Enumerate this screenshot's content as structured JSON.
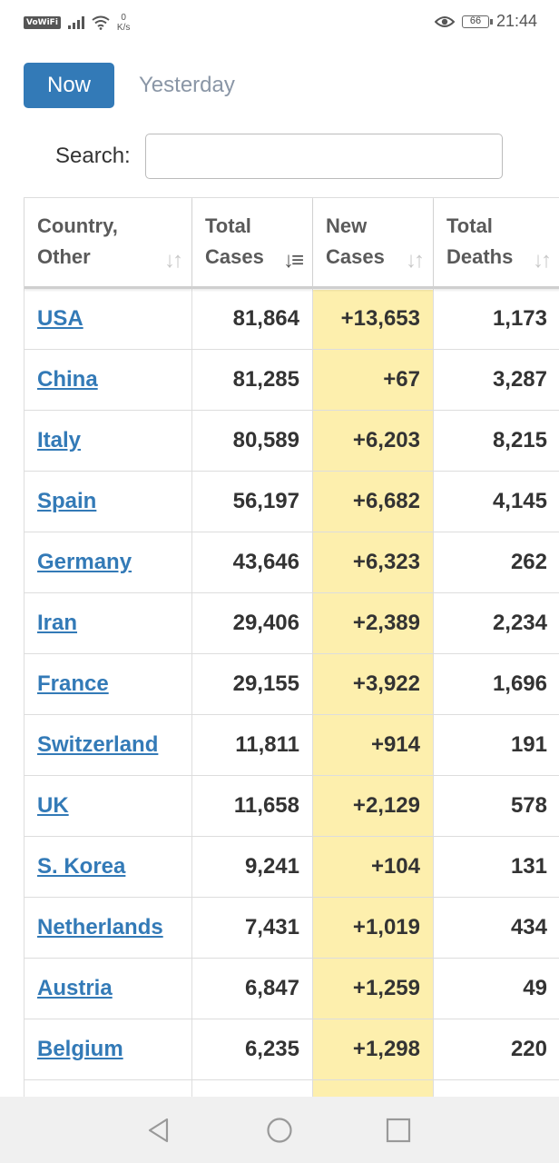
{
  "status_bar": {
    "vowifi": "VoWiFi",
    "net_speed_value": "0",
    "net_speed_unit": "K/s",
    "battery": "66",
    "time": "21:44"
  },
  "tabs": {
    "now": "Now",
    "yesterday": "Yesterday"
  },
  "search": {
    "label": "Search:",
    "value": "",
    "placeholder": ""
  },
  "table": {
    "headers": [
      {
        "line1": "Country,",
        "line2": "Other"
      },
      {
        "line1": "Total",
        "line2": "Cases"
      },
      {
        "line1": "New",
        "line2": "Cases"
      },
      {
        "line1": "Total",
        "line2": "Deaths"
      }
    ],
    "rows": [
      {
        "country": "USA",
        "total_cases": "81,864",
        "new_cases": "+13,653",
        "total_deaths": "1,173"
      },
      {
        "country": "China",
        "total_cases": "81,285",
        "new_cases": "+67",
        "total_deaths": "3,287"
      },
      {
        "country": "Italy",
        "total_cases": "80,589",
        "new_cases": "+6,203",
        "total_deaths": "8,215"
      },
      {
        "country": "Spain",
        "total_cases": "56,197",
        "new_cases": "+6,682",
        "total_deaths": "4,145"
      },
      {
        "country": "Germany",
        "total_cases": "43,646",
        "new_cases": "+6,323",
        "total_deaths": "262"
      },
      {
        "country": "Iran",
        "total_cases": "29,406",
        "new_cases": "+2,389",
        "total_deaths": "2,234"
      },
      {
        "country": "France",
        "total_cases": "29,155",
        "new_cases": "+3,922",
        "total_deaths": "1,696"
      },
      {
        "country": "Switzerland",
        "total_cases": "11,811",
        "new_cases": "+914",
        "total_deaths": "191"
      },
      {
        "country": "UK",
        "total_cases": "11,658",
        "new_cases": "+2,129",
        "total_deaths": "578"
      },
      {
        "country": "S. Korea",
        "total_cases": "9,241",
        "new_cases": "+104",
        "total_deaths": "131"
      },
      {
        "country": "Netherlands",
        "total_cases": "7,431",
        "new_cases": "+1,019",
        "total_deaths": "434"
      },
      {
        "country": "Austria",
        "total_cases": "6,847",
        "new_cases": "+1,259",
        "total_deaths": "49"
      },
      {
        "country": "Belgium",
        "total_cases": "6,235",
        "new_cases": "+1,298",
        "total_deaths": "220"
      }
    ],
    "highlight_color": "#fdefad"
  },
  "colors": {
    "accent": "#337ab7",
    "link": "#337ab7"
  }
}
